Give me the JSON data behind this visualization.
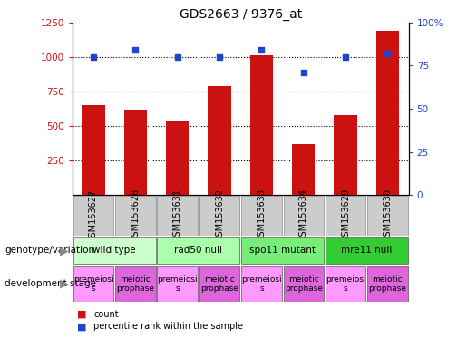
{
  "title": "GDS2663 / 9376_at",
  "samples": [
    "GSM153627",
    "GSM153628",
    "GSM153631",
    "GSM153632",
    "GSM153633",
    "GSM153634",
    "GSM153629",
    "GSM153630"
  ],
  "counts": [
    650,
    620,
    530,
    790,
    1010,
    370,
    580,
    1190
  ],
  "percentiles": [
    80,
    84,
    80,
    80,
    84,
    71,
    80,
    82
  ],
  "ylim_left": [
    0,
    1250
  ],
  "ylim_right": [
    0,
    100
  ],
  "yticks_left": [
    250,
    500,
    750,
    1000,
    1250
  ],
  "yticks_right": [
    0,
    25,
    50,
    75,
    100
  ],
  "bar_color": "#cc1111",
  "dot_color": "#2244cc",
  "genotype_groups": [
    {
      "label": "wild type",
      "start": 0,
      "end": 2,
      "color": "#ccffcc"
    },
    {
      "label": "rad50 null",
      "start": 2,
      "end": 4,
      "color": "#aaffaa"
    },
    {
      "label": "spo11 mutant",
      "start": 4,
      "end": 6,
      "color": "#77ee77"
    },
    {
      "label": "mre11 null",
      "start": 6,
      "end": 8,
      "color": "#33cc33"
    }
  ],
  "dev_stage_groups": [
    {
      "label": "premeiosi\ns",
      "start": 0,
      "end": 1,
      "color": "#ff99ff"
    },
    {
      "label": "meiotic\nprophase",
      "start": 1,
      "end": 2,
      "color": "#dd66dd"
    },
    {
      "label": "premeiosi\ns",
      "start": 2,
      "end": 3,
      "color": "#ff99ff"
    },
    {
      "label": "meiotic\nprophase",
      "start": 3,
      "end": 4,
      "color": "#dd66dd"
    },
    {
      "label": "premeiosi\ns",
      "start": 4,
      "end": 5,
      "color": "#ff99ff"
    },
    {
      "label": "meiotic\nprophase",
      "start": 5,
      "end": 6,
      "color": "#dd66dd"
    },
    {
      "label": "premeiosi\ns",
      "start": 6,
      "end": 7,
      "color": "#ff99ff"
    },
    {
      "label": "meiotic\nprophase",
      "start": 7,
      "end": 8,
      "color": "#dd66dd"
    }
  ],
  "left_label_genotype": "genotype/variation",
  "left_label_devstage": "development stage",
  "legend_count_label": "count",
  "legend_percentile_label": "percentile rank within the sample",
  "sample_box_color": "#cccccc",
  "title_fontsize": 10,
  "tick_fontsize": 7.5,
  "annotation_fontsize": 7,
  "side_label_fontsize": 7.5
}
